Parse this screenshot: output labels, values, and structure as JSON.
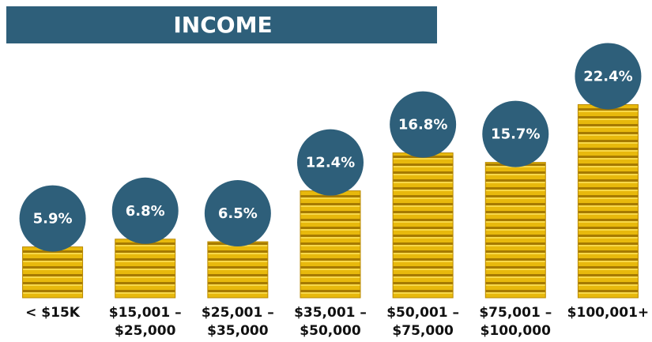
{
  "chart_data": {
    "type": "bar",
    "title": "INCOME",
    "categories": [
      "< $15K",
      "$15,001 –\n$25,000",
      "$25,001 –\n$35,000",
      "$35,001 –\n$50,000",
      "$50,001 –\n$75,000",
      "$75,001 –\n$100,000",
      "$100,001+"
    ],
    "values": [
      5.9,
      6.8,
      6.5,
      12.4,
      16.8,
      15.7,
      22.4
    ],
    "value_labels": [
      "5.9%",
      "6.8%",
      "6.5%",
      "12.4%",
      "16.8%",
      "15.7%",
      "22.4%"
    ],
    "color": "#e8b90c",
    "label_color": "#2e5f7a",
    "ylim": [
      0,
      24
    ]
  }
}
